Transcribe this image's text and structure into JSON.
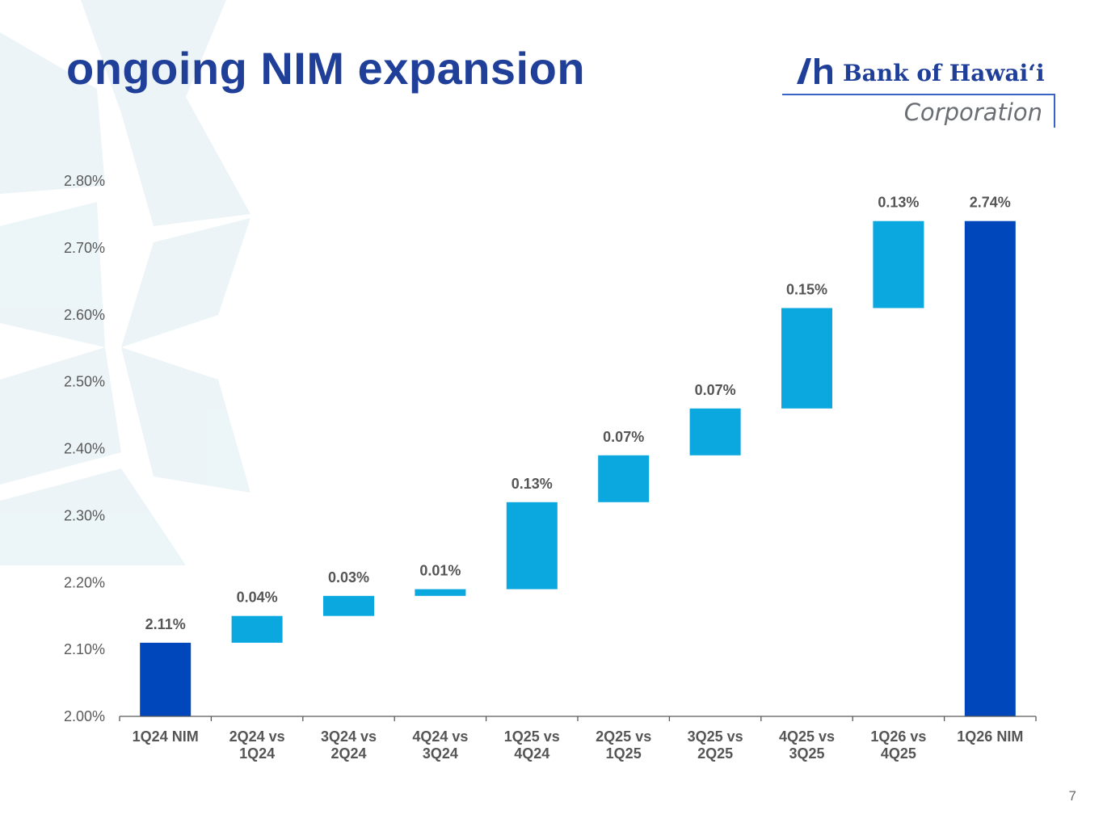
{
  "slide": {
    "title": "ongoing NIM expansion",
    "page_number": "7"
  },
  "logo": {
    "name": "Bank of Hawaiʻi",
    "subtitle": "Corporation"
  },
  "colors": {
    "title": "#1f3f99",
    "total_bar": "#0047bb",
    "increment_bar": "#0ba8e0",
    "label_text": "#555555",
    "axis": "#595959"
  },
  "chart_data": {
    "type": "bar",
    "subtype": "waterfall",
    "title": "",
    "xlabel": "",
    "ylabel": "",
    "ylim": [
      2.0,
      2.8
    ],
    "yticks": [
      2.0,
      2.1,
      2.2,
      2.3,
      2.4,
      2.5,
      2.6,
      2.7,
      2.8
    ],
    "ytick_labels": [
      "2.00%",
      "2.10%",
      "2.20%",
      "2.30%",
      "2.40%",
      "2.50%",
      "2.60%",
      "2.70%",
      "2.80%"
    ],
    "grid": false,
    "categories": [
      [
        "1Q24 NIM"
      ],
      [
        "2Q24 vs",
        "1Q24"
      ],
      [
        "3Q24 vs",
        "2Q24"
      ],
      [
        "4Q24 vs",
        "3Q24"
      ],
      [
        "1Q25 vs",
        "4Q24"
      ],
      [
        "2Q25 vs",
        "1Q25"
      ],
      [
        "3Q25 vs",
        "2Q25"
      ],
      [
        "4Q25 vs",
        "3Q25"
      ],
      [
        "1Q26 vs",
        "4Q25"
      ],
      [
        "1Q26 NIM"
      ]
    ],
    "bars": [
      {
        "kind": "total",
        "start": 2.0,
        "end": 2.11,
        "label": "2.11%"
      },
      {
        "kind": "increment",
        "start": 2.11,
        "end": 2.15,
        "label": "0.04%"
      },
      {
        "kind": "increment",
        "start": 2.15,
        "end": 2.18,
        "label": "0.03%"
      },
      {
        "kind": "increment",
        "start": 2.18,
        "end": 2.19,
        "label": "0.01%"
      },
      {
        "kind": "increment",
        "start": 2.19,
        "end": 2.32,
        "label": "0.13%"
      },
      {
        "kind": "increment",
        "start": 2.32,
        "end": 2.39,
        "label": "0.07%"
      },
      {
        "kind": "increment",
        "start": 2.39,
        "end": 2.46,
        "label": "0.07%"
      },
      {
        "kind": "increment",
        "start": 2.46,
        "end": 2.61,
        "label": "0.15%"
      },
      {
        "kind": "increment",
        "start": 2.61,
        "end": 2.74,
        "label": "0.13%"
      },
      {
        "kind": "total",
        "start": 2.0,
        "end": 2.74,
        "label": "2.74%"
      }
    ]
  }
}
